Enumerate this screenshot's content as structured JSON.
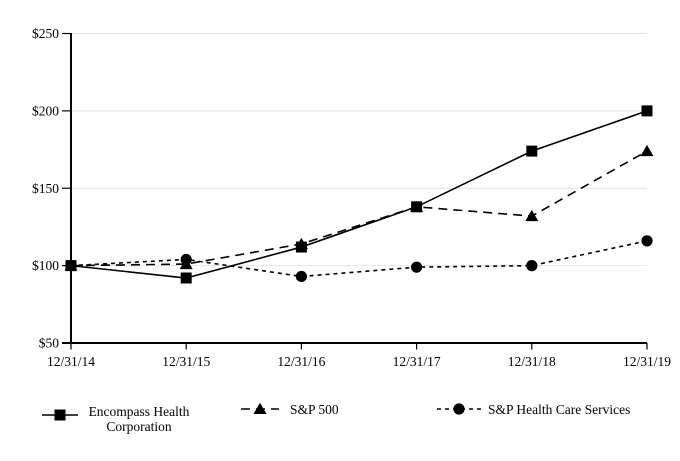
{
  "chart_data": {
    "type": "line",
    "title": "",
    "xlabel": "",
    "ylabel": "",
    "categories": [
      "12/31/14",
      "12/31/15",
      "12/31/16",
      "12/31/17",
      "12/31/18",
      "12/31/19"
    ],
    "y_tick_values": [
      50,
      100,
      150,
      200,
      250
    ],
    "y_tick_labels": [
      "$50",
      "$100",
      "$150",
      "$200",
      "$250"
    ],
    "ylim": [
      50,
      250
    ],
    "grid": "horizontal",
    "legend_position": "bottom",
    "background_color": "#ffffff",
    "axis_color": "#000000",
    "gridline_color": "#e4e4e4",
    "series": [
      {
        "name": "Encompass Health Corporation",
        "legend_lines": [
          "Encompass Health",
          "Corporation"
        ],
        "marker": "square",
        "line_style": "solid",
        "color": "#000000",
        "values": [
          100,
          92,
          112,
          138,
          174,
          200
        ]
      },
      {
        "name": "S&P 500",
        "legend_lines": [
          "S&P 500"
        ],
        "marker": "triangle",
        "line_style": "long-dash",
        "color": "#000000",
        "values": [
          100,
          101,
          114,
          138,
          132,
          174
        ]
      },
      {
        "name": "S&P Health Care Services",
        "legend_lines": [
          "S&P Health Care Services"
        ],
        "marker": "circle",
        "line_style": "short-dash",
        "color": "#000000",
        "values": [
          100,
          104,
          93,
          99,
          100,
          116
        ]
      }
    ]
  }
}
